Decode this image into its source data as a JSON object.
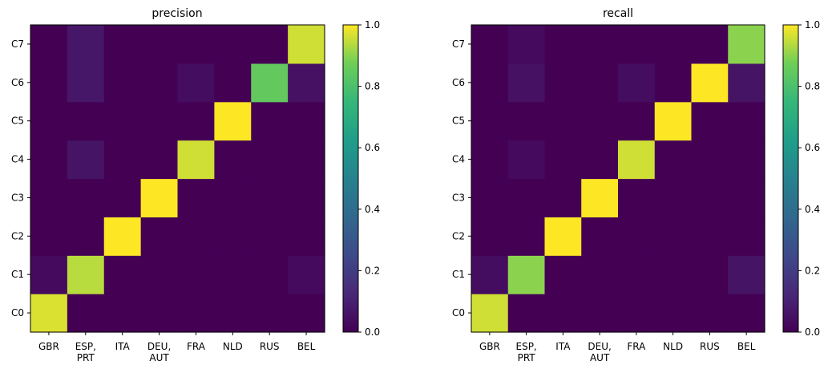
{
  "chart_data": [
    {
      "type": "heatmap",
      "title": "precision",
      "x_categories": [
        "GBR",
        "ESP,\nPRT",
        "ITA",
        "DEU,\nAUT",
        "FRA",
        "NLD",
        "RUS",
        "BEL"
      ],
      "y_categories": [
        "C0",
        "C1",
        "C2",
        "C3",
        "C4",
        "C5",
        "C6",
        "C7"
      ],
      "values": [
        [
          0.97,
          0.0,
          0.0,
          0.0,
          0.0,
          0.0,
          0.0,
          0.0
        ],
        [
          0.03,
          0.94,
          0.0,
          0.0,
          0.0,
          0.0,
          0.0,
          0.03
        ],
        [
          0.0,
          0.0,
          1.0,
          0.0,
          0.0,
          0.0,
          0.0,
          0.0
        ],
        [
          0.0,
          0.0,
          0.0,
          1.0,
          0.0,
          0.0,
          0.0,
          0.0
        ],
        [
          0.0,
          0.06,
          0.0,
          0.0,
          0.96,
          0.0,
          0.0,
          0.0
        ],
        [
          0.0,
          0.0,
          0.0,
          0.0,
          0.0,
          1.0,
          0.0,
          0.0
        ],
        [
          0.0,
          0.07,
          0.0,
          0.0,
          0.04,
          0.0,
          0.85,
          0.05
        ],
        [
          0.0,
          0.07,
          0.0,
          0.0,
          0.0,
          0.0,
          0.0,
          0.96
        ]
      ],
      "colormap": "viridis",
      "vmin": 0.0,
      "vmax": 1.0,
      "colorbar_ticks": [
        "0.0",
        "0.2",
        "0.4",
        "0.6",
        "0.8",
        "1.0"
      ]
    },
    {
      "type": "heatmap",
      "title": "recall",
      "x_categories": [
        "GBR",
        "ESP,\nPRT",
        "ITA",
        "DEU,\nAUT",
        "FRA",
        "NLD",
        "RUS",
        "BEL"
      ],
      "y_categories": [
        "C0",
        "C1",
        "C2",
        "C3",
        "C4",
        "C5",
        "C6",
        "C7"
      ],
      "values": [
        [
          0.96,
          0.0,
          0.0,
          0.0,
          0.0,
          0.0,
          0.0,
          0.0
        ],
        [
          0.04,
          0.9,
          0.0,
          0.0,
          0.0,
          0.0,
          0.0,
          0.06
        ],
        [
          0.0,
          0.0,
          1.0,
          0.0,
          0.0,
          0.0,
          0.0,
          0.0
        ],
        [
          0.0,
          0.0,
          0.0,
          1.0,
          0.0,
          0.0,
          0.0,
          0.0
        ],
        [
          0.0,
          0.03,
          0.0,
          0.0,
          0.96,
          0.0,
          0.0,
          0.0
        ],
        [
          0.0,
          0.0,
          0.0,
          0.0,
          0.0,
          1.0,
          0.0,
          0.0
        ],
        [
          0.0,
          0.05,
          0.0,
          0.0,
          0.04,
          0.0,
          1.0,
          0.06
        ],
        [
          0.0,
          0.03,
          0.0,
          0.0,
          0.0,
          0.0,
          0.0,
          0.9
        ]
      ],
      "colormap": "viridis",
      "vmin": 0.0,
      "vmax": 1.0,
      "colorbar_ticks": [
        "0.0",
        "0.2",
        "0.4",
        "0.6",
        "0.8",
        "1.0"
      ]
    }
  ]
}
